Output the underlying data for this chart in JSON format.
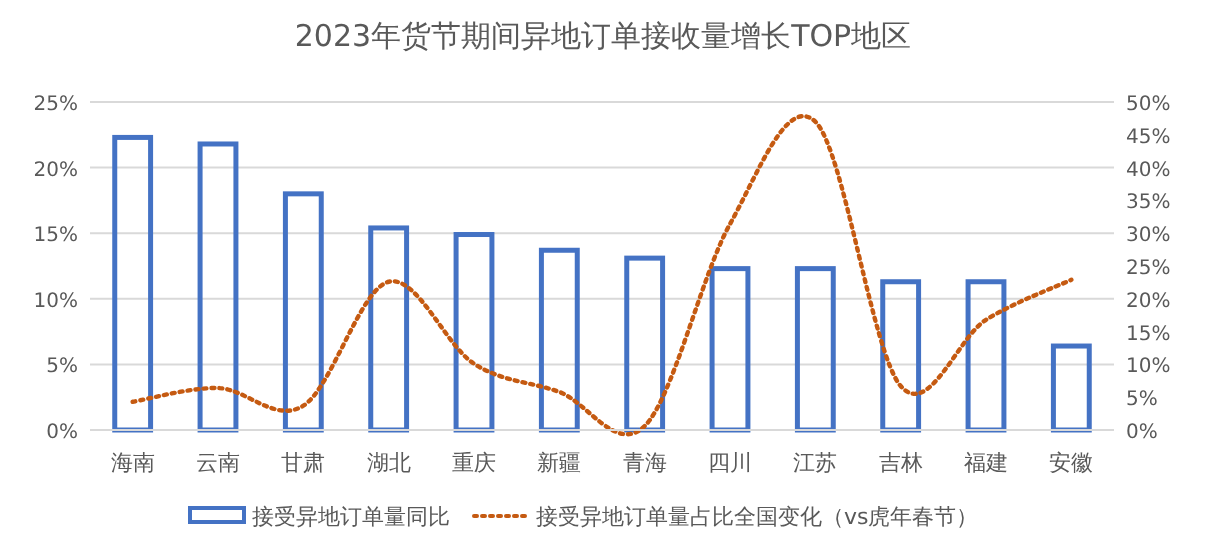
{
  "chart_data": {
    "type": "bar",
    "title": "2023年货节期间异地订单接收量增长TOP地区",
    "categories": [
      "海南",
      "云南",
      "甘肃",
      "湖北",
      "重庆",
      "新疆",
      "青海",
      "四川",
      "江苏",
      "吉林",
      "福建",
      "安徽"
    ],
    "series": [
      {
        "name": "接受异地订单量同比",
        "color": "#4472c4",
        "values": [
          22.3,
          21.8,
          18.0,
          15.4,
          14.9,
          13.7,
          13.1,
          12.3,
          12.3,
          11.3,
          11.3,
          6.4
        ]
      },
      {
        "name": "接受异地订单量占比全国变化（vs虎年春节）",
        "type": "line",
        "axis": "y2",
        "color": "#c55a11",
        "line_style": "dotted",
        "values": [
          4.3,
          6.4,
          3.7,
          22.6,
          10.1,
          5.8,
          0.6,
          31.4,
          47,
          6.7,
          16.8,
          22.9
        ]
      }
    ],
    "ylim": [
      0,
      25
    ],
    "yticks": [
      {
        "value": 0,
        "label": "0%"
      },
      {
        "value": 5,
        "label": "5%"
      },
      {
        "value": 10,
        "label": "10%"
      },
      {
        "value": 15,
        "label": "15%"
      },
      {
        "value": 20,
        "label": "20%"
      },
      {
        "value": 25,
        "label": "25%"
      }
    ],
    "y2lim": [
      0,
      50
    ],
    "y2ticks": [
      {
        "value": 0,
        "label": "0%"
      },
      {
        "value": 5,
        "label": "5%"
      },
      {
        "value": 10,
        "label": "10%"
      },
      {
        "value": 15,
        "label": "15%"
      },
      {
        "value": 20,
        "label": "20%"
      },
      {
        "value": 25,
        "label": "25%"
      },
      {
        "value": 30,
        "label": "30%"
      },
      {
        "value": 35,
        "label": "35%"
      },
      {
        "value": 40,
        "label": "40%"
      },
      {
        "value": 45,
        "label": "45%"
      },
      {
        "value": 50,
        "label": "50%"
      }
    ],
    "grid": "y",
    "legend": "bottom"
  }
}
